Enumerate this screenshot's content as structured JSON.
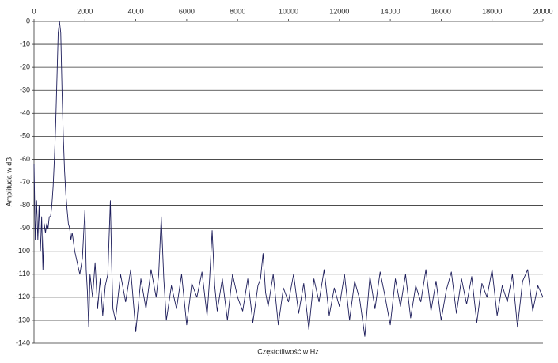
{
  "chart_data": {
    "type": "line",
    "x_label": "Częstotliwość w Hz",
    "y_label": "Amplituda w dB",
    "color": "#1c1c5a",
    "grid": true,
    "xlim": [
      0,
      20000
    ],
    "xticks": [
      0,
      2000,
      4000,
      6000,
      8000,
      10000,
      12000,
      14000,
      16000,
      18000,
      20000
    ],
    "ylim": [
      -140,
      0
    ],
    "yticks": [
      0,
      -10,
      -20,
      -30,
      -40,
      -50,
      -60,
      -70,
      -80,
      -90,
      -100,
      -110,
      -120,
      -130,
      -140
    ],
    "x": [
      0,
      50,
      100,
      150,
      200,
      250,
      300,
      350,
      400,
      450,
      500,
      550,
      600,
      650,
      700,
      750,
      800,
      850,
      900,
      950,
      1000,
      1050,
      1100,
      1150,
      1200,
      1250,
      1300,
      1350,
      1400,
      1450,
      1500,
      1600,
      1700,
      1800,
      1900,
      2000,
      2050,
      2100,
      2150,
      2200,
      2300,
      2400,
      2500,
      2600,
      2700,
      2800,
      2900,
      3000,
      3050,
      3100,
      3200,
      3400,
      3600,
      3800,
      4000,
      4200,
      4400,
      4600,
      4800,
      4900,
      5000,
      5100,
      5200,
      5400,
      5600,
      5800,
      6000,
      6200,
      6400,
      6600,
      6800,
      6900,
      7000,
      7100,
      7200,
      7400,
      7600,
      7800,
      8000,
      8200,
      8400,
      8600,
      8800,
      8900,
      9000,
      9100,
      9200,
      9400,
      9600,
      9800,
      10000,
      10200,
      10400,
      10600,
      10800,
      11000,
      11200,
      11400,
      11600,
      11800,
      12000,
      12200,
      12400,
      12600,
      12800,
      13000,
      13200,
      13400,
      13600,
      13800,
      14000,
      14200,
      14400,
      14600,
      14800,
      15000,
      15200,
      15400,
      15600,
      15800,
      16000,
      16200,
      16400,
      16600,
      16800,
      17000,
      17200,
      17400,
      17600,
      17800,
      18000,
      18200,
      18400,
      18600,
      18800,
      19000,
      19200,
      19400,
      19600,
      19800,
      20000
    ],
    "values": [
      -62,
      -95,
      -78,
      -95,
      -80,
      -100,
      -85,
      -108,
      -88,
      -92,
      -88,
      -90,
      -85,
      -85,
      -80,
      -72,
      -60,
      -45,
      -25,
      -5,
      0,
      -5,
      -30,
      -50,
      -65,
      -75,
      -82,
      -88,
      -90,
      -95,
      -92,
      -100,
      -105,
      -110,
      -103,
      -82,
      -108,
      -118,
      -133,
      -110,
      -120,
      -105,
      -125,
      -112,
      -128,
      -115,
      -110,
      -78,
      -105,
      -125,
      -130,
      -110,
      -122,
      -108,
      -135,
      -112,
      -125,
      -108,
      -120,
      -110,
      -85,
      -112,
      -130,
      -115,
      -125,
      -110,
      -132,
      -114,
      -120,
      -109,
      -128,
      -112,
      -91,
      -115,
      -126,
      -112,
      -130,
      -110,
      -120,
      -126,
      -112,
      -131,
      -115,
      -112,
      -101,
      -118,
      -124,
      -110,
      -132,
      -116,
      -122,
      -110,
      -127,
      -114,
      -134,
      -112,
      -122,
      -108,
      -128,
      -116,
      -124,
      -110,
      -130,
      -113,
      -121,
      -137,
      -111,
      -125,
      -109,
      -120,
      -132,
      -112,
      -124,
      -110,
      -129,
      -115,
      -122,
      -108,
      -126,
      -113,
      -130,
      -117,
      -109,
      -127,
      -112,
      -123,
      -111,
      -131,
      -114,
      -120,
      -108,
      -128,
      -115,
      -122,
      -110,
      -133,
      -113,
      -108,
      -126,
      -115,
      -120
    ]
  }
}
